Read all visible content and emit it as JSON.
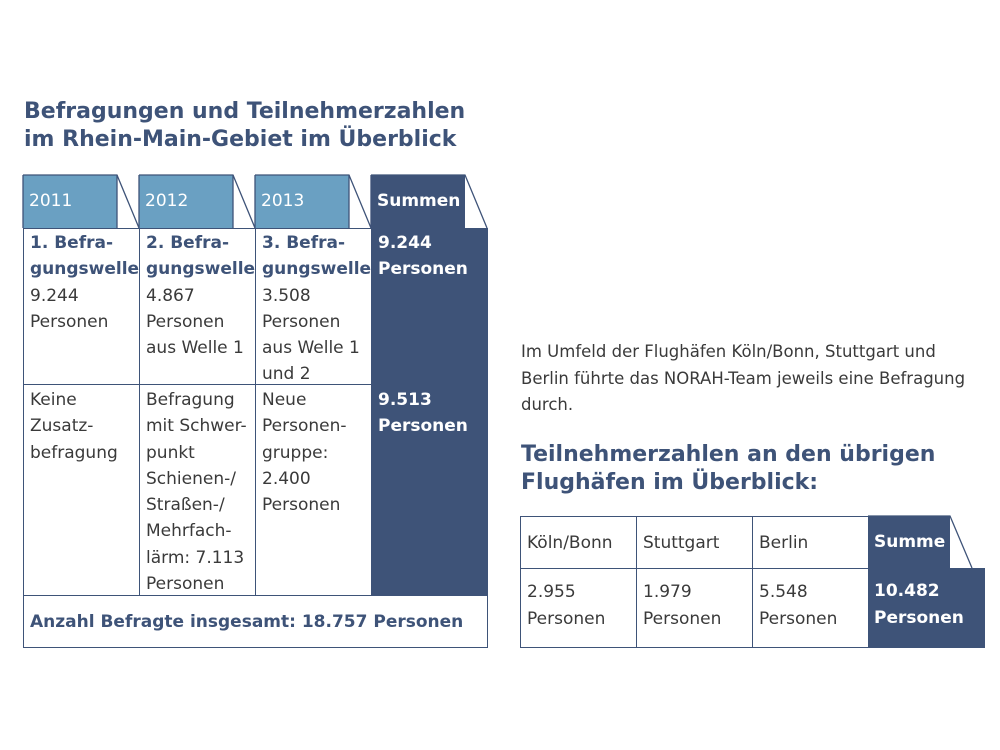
{
  "left": {
    "title_line1": "Befragungen und Teilnehmerzahlen",
    "title_line2": "im Rhein-Main-Gebiet im Überblick",
    "headers": [
      "2011",
      "2012",
      "2013",
      "Summen"
    ],
    "row1": [
      {
        "bold": "1. Befra-gungswelle",
        "lines": [
          "9.244",
          "Personen"
        ]
      },
      {
        "bold": "2. Befra-gungswelle",
        "lines": [
          "4.867",
          "Personen",
          "aus Welle 1"
        ]
      },
      {
        "bold": "3. Befra-gungswelle",
        "lines": [
          "3.508",
          "Personen",
          "aus Welle 1",
          "und 2"
        ]
      },
      {
        "bold": "",
        "lines": [
          "9.244",
          "Personen"
        ]
      }
    ],
    "row1_bold_lines": [
      [
        "1. Befra-",
        "gungswelle"
      ],
      [
        "2. Befra-",
        "gungswelle"
      ],
      [
        "3. Befra-",
        "gungswelle"
      ]
    ],
    "row2": [
      [
        "Keine",
        "Zusatz-",
        "befragung"
      ],
      [
        "Befragung",
        "mit Schwer-",
        "punkt",
        "Schienen-/",
        "Straßen-/",
        "Mehrfach-",
        "lärm: 7.113",
        "Personen"
      ],
      [
        "Neue",
        "Personen-",
        "gruppe:",
        "2.400",
        "Personen"
      ],
      [
        "9.513",
        "Personen"
      ]
    ],
    "total": "Anzahl Befragte insgesamt: 18.757 Personen"
  },
  "right": {
    "intro_line1": "Im Umfeld der Flughäfen Köln/Bonn, Stuttgart und",
    "intro_line2": "Berlin führte das NORAH-Team jeweils eine Befragung",
    "intro_line3": "durch.",
    "title_line1": "Teilnehmerzahlen an den übrigen",
    "title_line2": "Flughäfen im Überblick:",
    "headers": [
      "Köln/Bonn",
      "Stuttgart",
      "Berlin",
      "Summe"
    ],
    "values": [
      [
        "2.955",
        "Personen"
      ],
      [
        "1.979",
        "Personen"
      ],
      [
        "5.548",
        "Personen"
      ],
      [
        "10.482",
        "Personen"
      ]
    ]
  },
  "colors": {
    "dark_blue": "#3e5378",
    "light_blue": "#6aa0c2"
  }
}
